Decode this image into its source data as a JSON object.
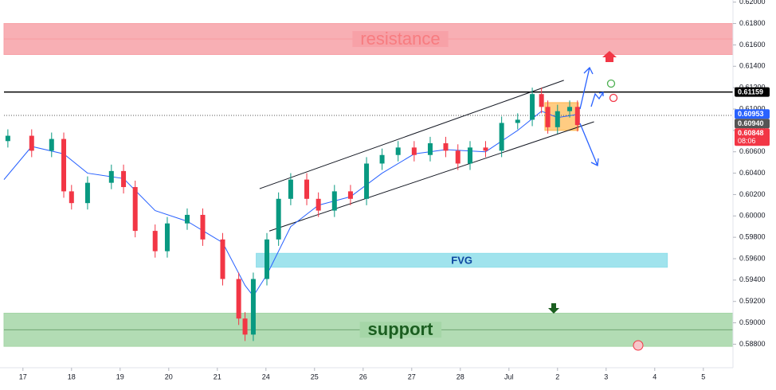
{
  "chart_data": {
    "type": "candlestick",
    "x": [
      -0.31,
      0.18,
      0.59,
      0.84,
      1.0,
      1.33,
      1.82,
      2.07,
      2.31,
      2.72,
      2.97,
      3.38,
      3.7,
      4.11,
      4.44,
      4.57,
      4.74,
      5.02,
      5.26,
      5.51,
      5.84,
      6.08,
      6.41,
      6.74,
      7.07,
      7.39,
      7.72,
      8.05,
      8.38,
      8.7,
      8.95,
      9.2,
      9.52,
      9.85,
      10.18,
      10.48,
      10.67,
      10.8,
      11.0,
      11.25,
      11.41
    ],
    "open": [
      0.607,
      0.6075,
      0.6061,
      0.6072,
      0.6023,
      0.6012,
      0.6031,
      0.6042,
      0.6027,
      0.5986,
      0.5967,
      0.5993,
      0.6001,
      0.5978,
      0.5941,
      0.5904,
      0.5889,
      0.5941,
      0.5978,
      0.6016,
      0.6034,
      0.6016,
      0.6005,
      0.6023,
      0.6016,
      0.6049,
      0.6057,
      0.6064,
      0.6057,
      0.6068,
      0.6061,
      0.6049,
      0.6064,
      0.6061,
      0.6087,
      0.609,
      0.6114,
      0.6102,
      0.6083,
      0.6098,
      0.6102
    ],
    "high": [
      0.6081,
      0.6081,
      0.6078,
      0.6078,
      0.6029,
      0.6037,
      0.6048,
      0.6048,
      0.6033,
      0.5992,
      0.5999,
      0.6007,
      0.6007,
      0.5984,
      0.5947,
      0.591,
      0.5947,
      0.5984,
      0.6022,
      0.604,
      0.604,
      0.6022,
      0.6029,
      0.6029,
      0.6055,
      0.6063,
      0.607,
      0.607,
      0.6074,
      0.6074,
      0.6067,
      0.607,
      0.607,
      0.6093,
      0.6096,
      0.612,
      0.612,
      0.6108,
      0.6104,
      0.6108,
      0.6108
    ],
    "low": [
      0.6064,
      0.6055,
      0.6055,
      0.6017,
      0.6006,
      0.6006,
      0.6025,
      0.6021,
      0.598,
      0.5961,
      0.5961,
      0.5987,
      0.5972,
      0.5935,
      0.5898,
      0.5883,
      0.5883,
      0.5935,
      0.5972,
      0.601,
      0.601,
      0.5999,
      0.5999,
      0.601,
      0.601,
      0.6043,
      0.6051,
      0.6051,
      0.6051,
      0.6055,
      0.6043,
      0.6043,
      0.6055,
      0.6055,
      0.6081,
      0.6084,
      0.6096,
      0.6077,
      0.6077,
      0.6092,
      0.6079
    ],
    "close": [
      0.6075,
      0.6061,
      0.6072,
      0.6023,
      0.6012,
      0.6031,
      0.6042,
      0.6027,
      0.5986,
      0.5967,
      0.5993,
      0.6001,
      0.5978,
      0.5941,
      0.5904,
      0.5889,
      0.5941,
      0.5978,
      0.6016,
      0.6034,
      0.6016,
      0.6005,
      0.6023,
      0.6016,
      0.6049,
      0.6057,
      0.6064,
      0.6057,
      0.6068,
      0.6061,
      0.6049,
      0.6064,
      0.6061,
      0.6087,
      0.609,
      0.6114,
      0.6102,
      0.6083,
      0.6098,
      0.6102,
      0.6085
    ],
    "up_color": "#089981",
    "down_color": "#f23645",
    "ma": {
      "color": "#2962ff",
      "x": [
        -0.39,
        0.18,
        0.84,
        1.33,
        2.07,
        2.72,
        3.38,
        4.11,
        4.57,
        4.74,
        5.02,
        5.51,
        6.08,
        6.74,
        7.39,
        8.05,
        8.7,
        9.52,
        10.18,
        10.67,
        11.0,
        11.41
      ],
      "values": [
        0.6034,
        0.6065,
        0.6058,
        0.604,
        0.6035,
        0.6005,
        0.5995,
        0.5975,
        0.5935,
        0.5925,
        0.5945,
        0.599,
        0.601,
        0.6018,
        0.604,
        0.6058,
        0.6062,
        0.606,
        0.608,
        0.6098,
        0.6092,
        0.6095
      ]
    },
    "zones": [
      {
        "label": "resistance",
        "range": [
          0.6151,
          0.618
        ],
        "color": "#f7a1a7",
        "text_color": "#f77c80"
      },
      {
        "label": "support",
        "range": [
          0.5878,
          0.5909
        ],
        "color": "#a5d6a7",
        "text_color": "#1b5e20"
      },
      {
        "label": "FVG",
        "range": [
          0.5952,
          0.5965
        ],
        "x": [
          4.8,
          13.26
        ],
        "color": "#8fdeea",
        "text_color": "#0d47a1"
      }
    ],
    "channel": [
      {
        "x": [
          4.87,
          11.13
        ],
        "values": [
          0.60255,
          0.61269
        ]
      },
      {
        "x": [
          5.07,
          11.75
        ],
        "values": [
          0.59859,
          0.60881
        ]
      }
    ],
    "box": {
      "x": [
        10.74,
        11.43
      ],
      "range": [
        0.608,
        0.6106
      ],
      "color": "#ffb74d"
    },
    "hlines": [
      {
        "value": 0.61159,
        "style": "solid",
        "color": "#000000"
      },
      {
        "value": 0.6094,
        "style": "dotted",
        "color": "#555555"
      }
    ],
    "price_tags": [
      {
        "value": 0.61159,
        "color": "#000000"
      },
      {
        "value": 0.60953,
        "color": "#2962ff"
      },
      {
        "value": 0.6094,
        "label": "0.60940",
        "color": "#555555"
      },
      {
        "value": 0.60848,
        "color": "#f23645",
        "sub": "08:06"
      }
    ],
    "xlim": [
      -0.39,
      14.61
    ],
    "xticks": [
      {
        "value": 0,
        "label": "17"
      },
      {
        "value": 1,
        "label": "18"
      },
      {
        "value": 2,
        "label": "19"
      },
      {
        "value": 3,
        "label": "20"
      },
      {
        "value": 4,
        "label": "21"
      },
      {
        "value": 5,
        "label": "24"
      },
      {
        "value": 6,
        "label": "25"
      },
      {
        "value": 7,
        "label": "26"
      },
      {
        "value": 8,
        "label": "27"
      },
      {
        "value": 9,
        "label": "28"
      },
      {
        "value": 10,
        "label": "Jul"
      },
      {
        "value": 11,
        "label": "2"
      },
      {
        "value": 12,
        "label": "3"
      },
      {
        "value": 13,
        "label": "4"
      },
      {
        "value": 14,
        "label": "5"
      }
    ],
    "ylim": [
      0.5858,
      0.6202
    ],
    "yticks": [
      {
        "value": 0.588,
        "label": "0.58800"
      },
      {
        "value": 0.59,
        "label": "0.59000"
      },
      {
        "value": 0.592,
        "label": "0.59200"
      },
      {
        "value": 0.594,
        "label": "0.59400"
      },
      {
        "value": 0.596,
        "label": "0.59600"
      },
      {
        "value": 0.598,
        "label": "0.59800"
      },
      {
        "value": 0.6,
        "label": "0.60000"
      },
      {
        "value": 0.602,
        "label": "0.60200"
      },
      {
        "value": 0.604,
        "label": "0.60400"
      },
      {
        "value": 0.606,
        "label": "0.60600"
      },
      {
        "value": 0.608,
        "label": "0.60800"
      },
      {
        "value": 0.61,
        "label": "0.61000"
      },
      {
        "value": 0.612,
        "label": "0.61200"
      },
      {
        "value": 0.614,
        "label": "0.61400"
      },
      {
        "value": 0.616,
        "label": "0.61600"
      },
      {
        "value": 0.618,
        "label": "0.61800"
      },
      {
        "value": 0.62,
        "label": "0.62000"
      }
    ]
  }
}
